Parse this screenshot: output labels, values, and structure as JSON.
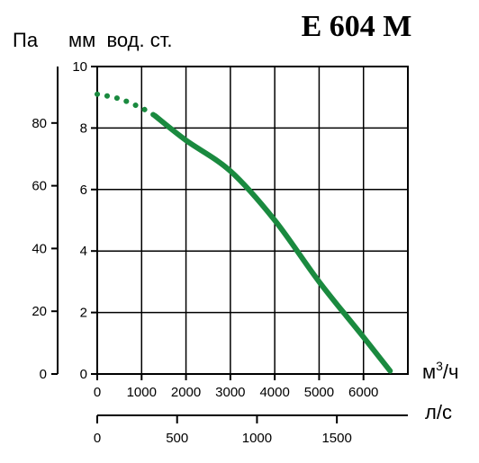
{
  "chart_data": {
    "type": "line",
    "title": "E 604 M",
    "units": {
      "pa": "Па",
      "mm": "мм  вод. ст.",
      "m3h_base": "м",
      "m3h_sup": "3",
      "m3h_rest": "/ч",
      "ls": "л/с"
    },
    "x_axis": {
      "label": "м³/ч",
      "range": [
        0,
        7000
      ],
      "ticks": [
        0,
        1000,
        2000,
        3000,
        4000,
        5000,
        6000
      ]
    },
    "y_axis_left": {
      "label": "мм вод. ст.",
      "range": [
        0,
        10
      ],
      "ticks": [
        0,
        2,
        4,
        6,
        8,
        10
      ]
    },
    "y_axis_pa": {
      "label": "Па",
      "range": [
        0,
        98
      ],
      "ticks": [
        0,
        20,
        40,
        60,
        80
      ]
    },
    "x_axis_ls": {
      "label": "л/с",
      "ticks": [
        0,
        500,
        1000,
        1500
      ]
    },
    "grid": true,
    "series": [
      {
        "color": "#1a8a3f",
        "dotted_until_x": 1300,
        "points": [
          [
            0,
            9.1
          ],
          [
            500,
            8.95
          ],
          [
            1000,
            8.65
          ],
          [
            1300,
            8.4
          ],
          [
            2000,
            7.6
          ],
          [
            3000,
            6.6
          ],
          [
            4000,
            5.0
          ],
          [
            5000,
            3.0
          ],
          [
            6000,
            1.2
          ],
          [
            6600,
            0.1
          ]
        ]
      }
    ]
  }
}
